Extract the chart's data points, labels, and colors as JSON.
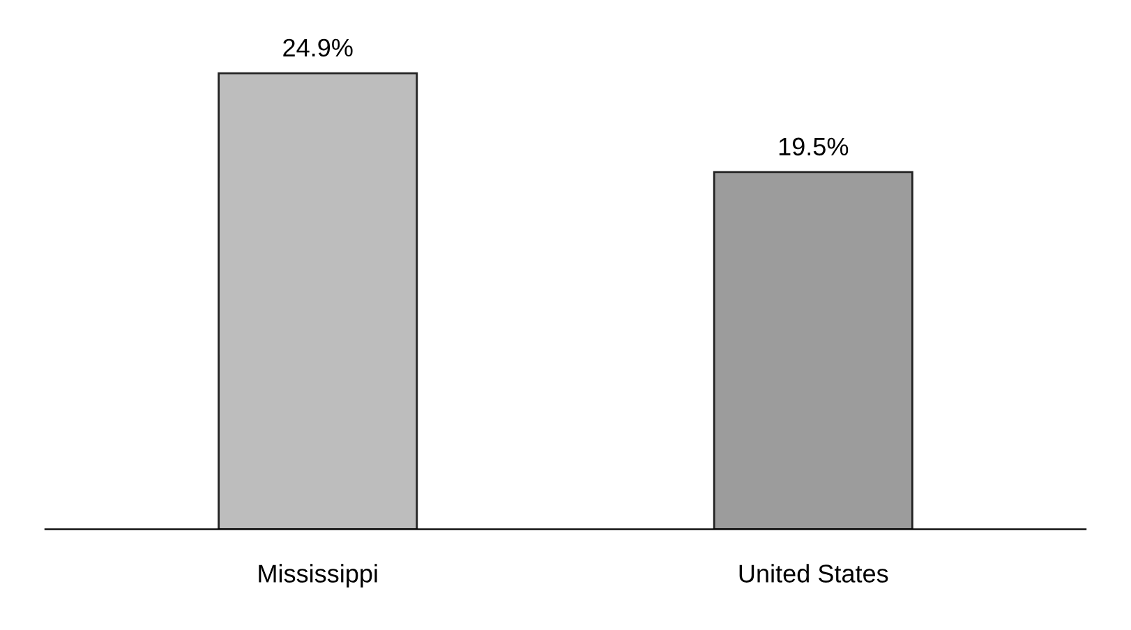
{
  "chart_data": {
    "type": "bar",
    "categories": [
      "Mississippi",
      "United States"
    ],
    "values": [
      24.9,
      19.5
    ],
    "colors": [
      "#bdbdbd",
      "#9c9c9c"
    ],
    "value_labels": [
      "24.9%",
      "19.5%"
    ],
    "grid": false
  }
}
